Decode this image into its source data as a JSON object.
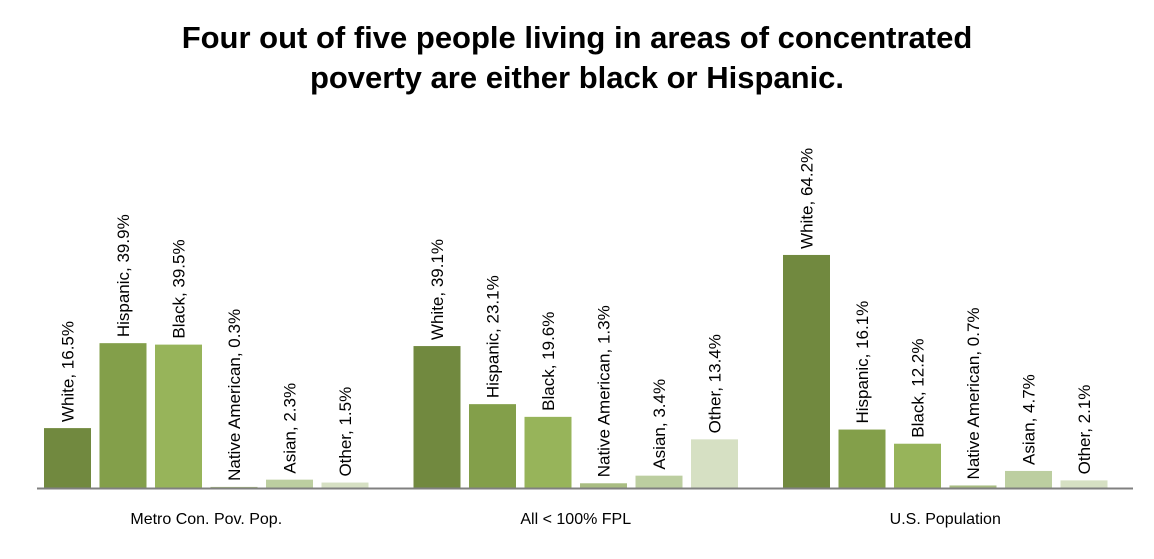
{
  "chart_data": {
    "type": "bar",
    "title_lines": [
      "Four out of five people living in areas of concentrated",
      "poverty are either black or Hispanic."
    ],
    "categories": [
      "Metro Con. Pov. Pop.",
      "All < 100% FPL",
      "U.S. Population"
    ],
    "series": [
      {
        "name": "White",
        "values": [
          16.5,
          39.1,
          64.2
        ],
        "color": "#71893f"
      },
      {
        "name": "Hispanic",
        "values": [
          39.9,
          23.1,
          16.1
        ],
        "color": "#839f4a"
      },
      {
        "name": "Black",
        "values": [
          39.5,
          19.6,
          12.2
        ],
        "color": "#97b45a"
      },
      {
        "name": "Native American",
        "values": [
          0.3,
          1.3,
          0.7
        ],
        "color": "#a9bd82"
      },
      {
        "name": "Asian",
        "values": [
          2.3,
          3.4,
          4.7
        ],
        "color": "#bccea0"
      },
      {
        "name": "Other",
        "values": [
          1.5,
          13.4,
          2.1
        ],
        "color": "#d6e0c3"
      }
    ],
    "data_labels": [
      [
        "White, 16.5%",
        "Hispanic, 39.9%",
        "Black, 39.5%",
        "Native American, 0.3%",
        "Asian, 2.3%",
        "Other, 1.5%"
      ],
      [
        "White, 39.1%",
        "Hispanic, 23.1%",
        "Black, 19.6%",
        "Native American, 1.3%",
        "Asian, 3.4%",
        "Other, 13.4%"
      ],
      [
        "White, 64.2%",
        "Hispanic, 16.1%",
        "Black, 12.2%",
        "Native American, 0.7%",
        "Asian, 4.7%",
        "Other, 2.1%"
      ]
    ],
    "unit": "%",
    "ylim": [
      0,
      70
    ],
    "grid": false,
    "legend": "none",
    "axis_color": "#808080"
  }
}
